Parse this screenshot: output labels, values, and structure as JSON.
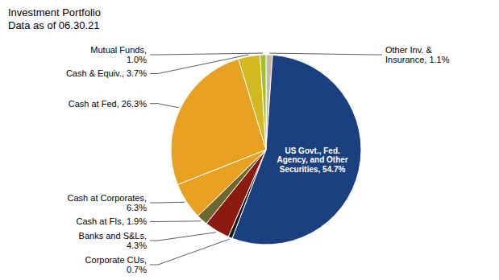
{
  "chart_data": {
    "type": "pie",
    "title": "Investment Portfolio\nData as of 06.30.21",
    "categories": [
      "Other Inv. &\nInsurance, 1.1%",
      "US Govt., Fed.\nAgency, and Other\nSecurities, 54.7%",
      "Corporate CUs,\n0.7%",
      "Banks and S&Ls,\n4.3%",
      "Cash at FIs, 1.9%",
      "Cash at Corporates,\n6.3%",
      "Cash at Fed, 26.3%",
      "Cash & Equiv., 3.7%",
      "Mutual Funds,\n1.0%"
    ],
    "values": [
      1.1,
      54.7,
      0.7,
      4.3,
      1.9,
      6.3,
      26.3,
      3.7,
      1.0
    ],
    "colors": [
      "#c8b8a8",
      "#1b4080",
      "#1a1a1a",
      "#8b1a10",
      "#6b6830",
      "#e8a020",
      "#e8a020",
      "#d4b820",
      "#a0c030"
    ]
  }
}
